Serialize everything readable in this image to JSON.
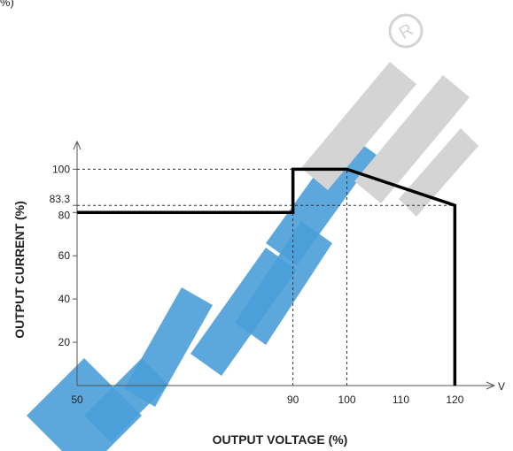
{
  "page_fragment": "%)",
  "chart_data": {
    "type": "line",
    "title": "",
    "xlabel": "OUTPUT VOLTAGE (%)",
    "ylabel": "OUTPUT CURRENT (%)",
    "x_unit_marker": "V",
    "xlim": [
      50,
      127
    ],
    "ylim": [
      0,
      112
    ],
    "x_ticks": [
      {
        "value": 50,
        "label": "50"
      },
      {
        "value": 90,
        "label": "90"
      },
      {
        "value": 100,
        "label": "100"
      },
      {
        "value": 110,
        "label": "110"
      },
      {
        "value": 120,
        "label": "120"
      }
    ],
    "y_ticks": [
      {
        "value": 20,
        "label": "20"
      },
      {
        "value": 40,
        "label": "40"
      },
      {
        "value": 60,
        "label": "60"
      },
      {
        "value": 80,
        "label": "80"
      },
      {
        "value": 83.3,
        "label": "83.3"
      },
      {
        "value": 100,
        "label": "100"
      }
    ],
    "series": [
      {
        "x": [
          50,
          90,
          90,
          100,
          120,
          120
        ],
        "y": [
          80,
          80,
          100,
          100,
          83.3,
          0
        ],
        "color": "#000000"
      }
    ],
    "reference_lines": [
      {
        "from": [
          50,
          100
        ],
        "to": [
          90,
          100
        ]
      },
      {
        "from": [
          50,
          83.3
        ],
        "to": [
          120,
          83.3
        ]
      },
      {
        "from": [
          90,
          0
        ],
        "to": [
          90,
          80
        ]
      },
      {
        "from": [
          100,
          0
        ],
        "to": [
          100,
          100
        ]
      }
    ],
    "grid": false,
    "legend": "none",
    "watermark_colors": {
      "blue": "#4a9fd8",
      "gray": "#d4d4d4"
    }
  }
}
